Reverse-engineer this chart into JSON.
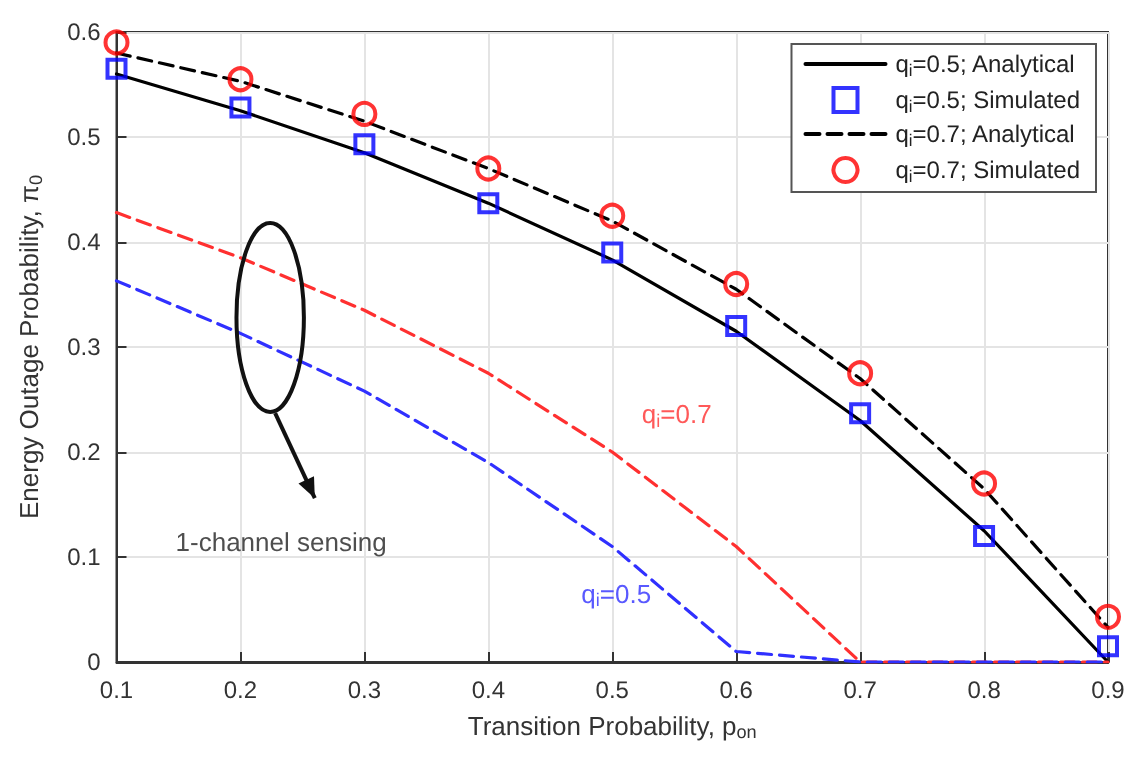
{
  "chart_data": {
    "type": "line",
    "xlabel": "Transition Probability, p$_{on}$",
    "ylabel": "Energy Outage Probability, π$_{0}$",
    "x": [
      0.1,
      0.2,
      0.3,
      0.4,
      0.5,
      0.6,
      0.7,
      0.8,
      0.9
    ],
    "xlim": [
      0.1,
      0.9
    ],
    "xticks": [
      0.1,
      0.2,
      0.3,
      0.4,
      0.5,
      0.6,
      0.7,
      0.8,
      0.9
    ],
    "ylim": [
      0,
      0.6
    ],
    "yticks": [
      0,
      0.1,
      0.2,
      0.3,
      0.4,
      0.5,
      0.6
    ],
    "grid": true,
    "legend": "top right",
    "series": [
      {
        "name": "q$_{i}$=0.5; Analytical",
        "color": "#000000",
        "line_style": "solid",
        "marker": "none",
        "values": [
          0.56,
          0.525,
          0.485,
          0.437,
          0.383,
          0.315,
          0.23,
          0.125,
          0.0
        ]
      },
      {
        "name": "q$_{i}$=0.5; Simulated",
        "type": "scatter",
        "color": "#0000ff",
        "marker": "square",
        "values": [
          0.565,
          0.528,
          0.493,
          0.437,
          0.39,
          0.32,
          0.237,
          0.12,
          0.015
        ]
      },
      {
        "name": "q$_{i}$=0.7; Analytical",
        "color": "#000000",
        "line_style": "dashed",
        "marker": "none",
        "values": [
          0.58,
          0.553,
          0.515,
          0.47,
          0.42,
          0.355,
          0.27,
          0.165,
          0.033
        ]
      },
      {
        "name": "q$_{i}$=0.7; Simulated",
        "type": "scatter",
        "color": "#ff0000",
        "marker": "circle",
        "values": [
          0.59,
          0.555,
          0.522,
          0.47,
          0.425,
          0.36,
          0.275,
          0.17,
          0.043
        ]
      },
      {
        "color": "#ff3030",
        "line_style": "dashed",
        "marker": "none",
        "values": [
          0.428,
          0.385,
          0.335,
          0.275,
          0.2,
          0.11,
          0.0,
          0.0,
          0.0
        ]
      },
      {
        "color": "#3030ff",
        "line_style": "dashed",
        "marker": "none",
        "values": [
          0.363,
          0.313,
          0.258,
          0.19,
          0.11,
          0.01,
          0.0,
          0.0,
          0.0
        ]
      }
    ],
    "annotations": [
      "q$_{i}$=0.7",
      "q$_{i}$=0.5",
      "1-channel sensing"
    ]
  }
}
